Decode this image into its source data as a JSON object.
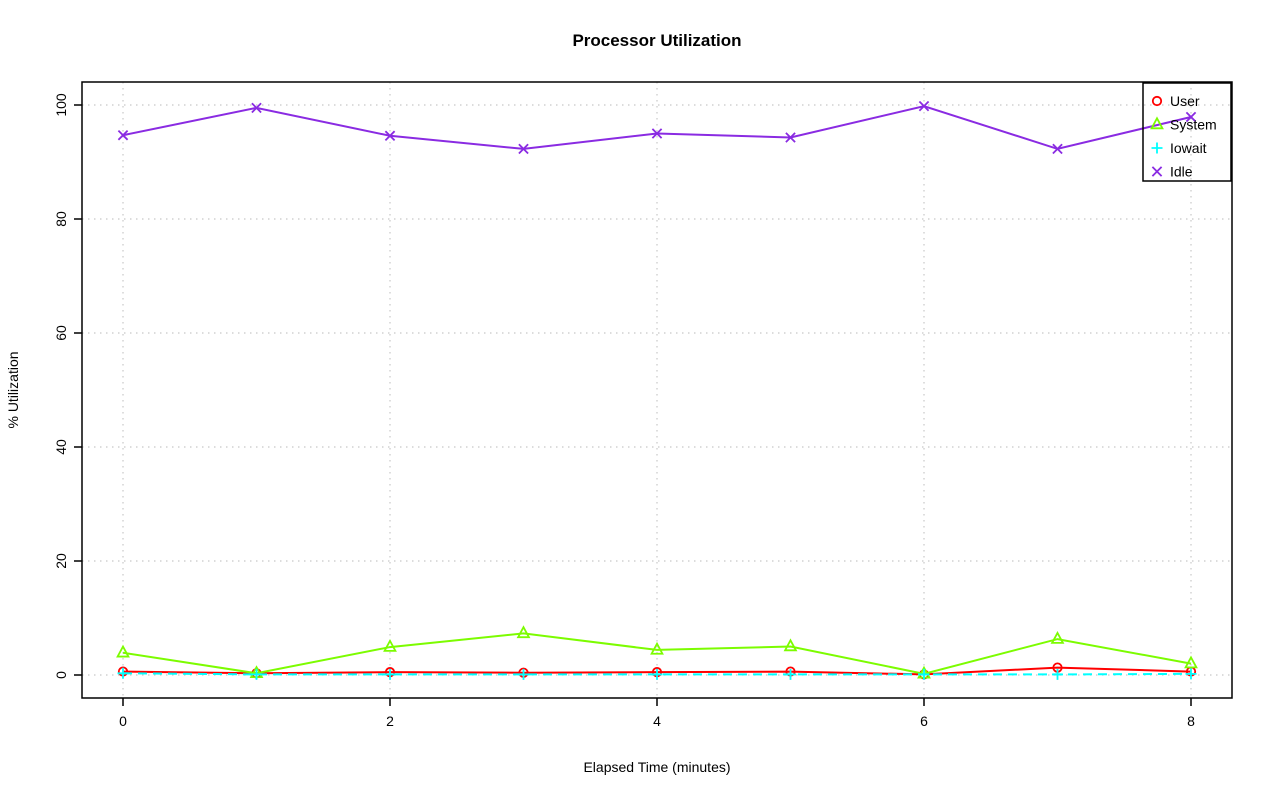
{
  "chart_data": {
    "type": "line",
    "title": "Processor Utilization",
    "xlabel": "Elapsed Time (minutes)",
    "ylabel": "% Utilization",
    "x": [
      0,
      1,
      2,
      3,
      4,
      5,
      6,
      7,
      8
    ],
    "xlim": [
      0,
      8
    ],
    "ylim": [
      0,
      100
    ],
    "x_ticks": [
      0,
      2,
      4,
      6,
      8
    ],
    "y_ticks": [
      0,
      20,
      40,
      60,
      80,
      100
    ],
    "grid": true,
    "grid_style": "dotted",
    "grid_color": "#c8c8c8",
    "legend_position": "top-right",
    "series": [
      {
        "name": "User",
        "color": "#ff0000",
        "marker": "circle",
        "line": "solid",
        "values": [
          0.6,
          0.3,
          0.5,
          0.4,
          0.5,
          0.6,
          0.1,
          1.3,
          0.6
        ]
      },
      {
        "name": "System",
        "color": "#7cfc00",
        "marker": "triangle",
        "line": "solid",
        "values": [
          3.9,
          0.3,
          4.9,
          7.3,
          4.4,
          5.0,
          0.2,
          6.3,
          2.0
        ]
      },
      {
        "name": "Iowait",
        "color": "#00ffff",
        "marker": "plus",
        "line": "dashed",
        "values": [
          0.3,
          0.1,
          0.1,
          0.1,
          0.1,
          0.1,
          0.1,
          0.1,
          0.2
        ]
      },
      {
        "name": "Idle",
        "color": "#8a2be2",
        "marker": "x",
        "line": "solid",
        "values": [
          94.7,
          99.5,
          94.6,
          92.3,
          95.0,
          94.3,
          99.8,
          92.3,
          97.9
        ]
      }
    ]
  }
}
